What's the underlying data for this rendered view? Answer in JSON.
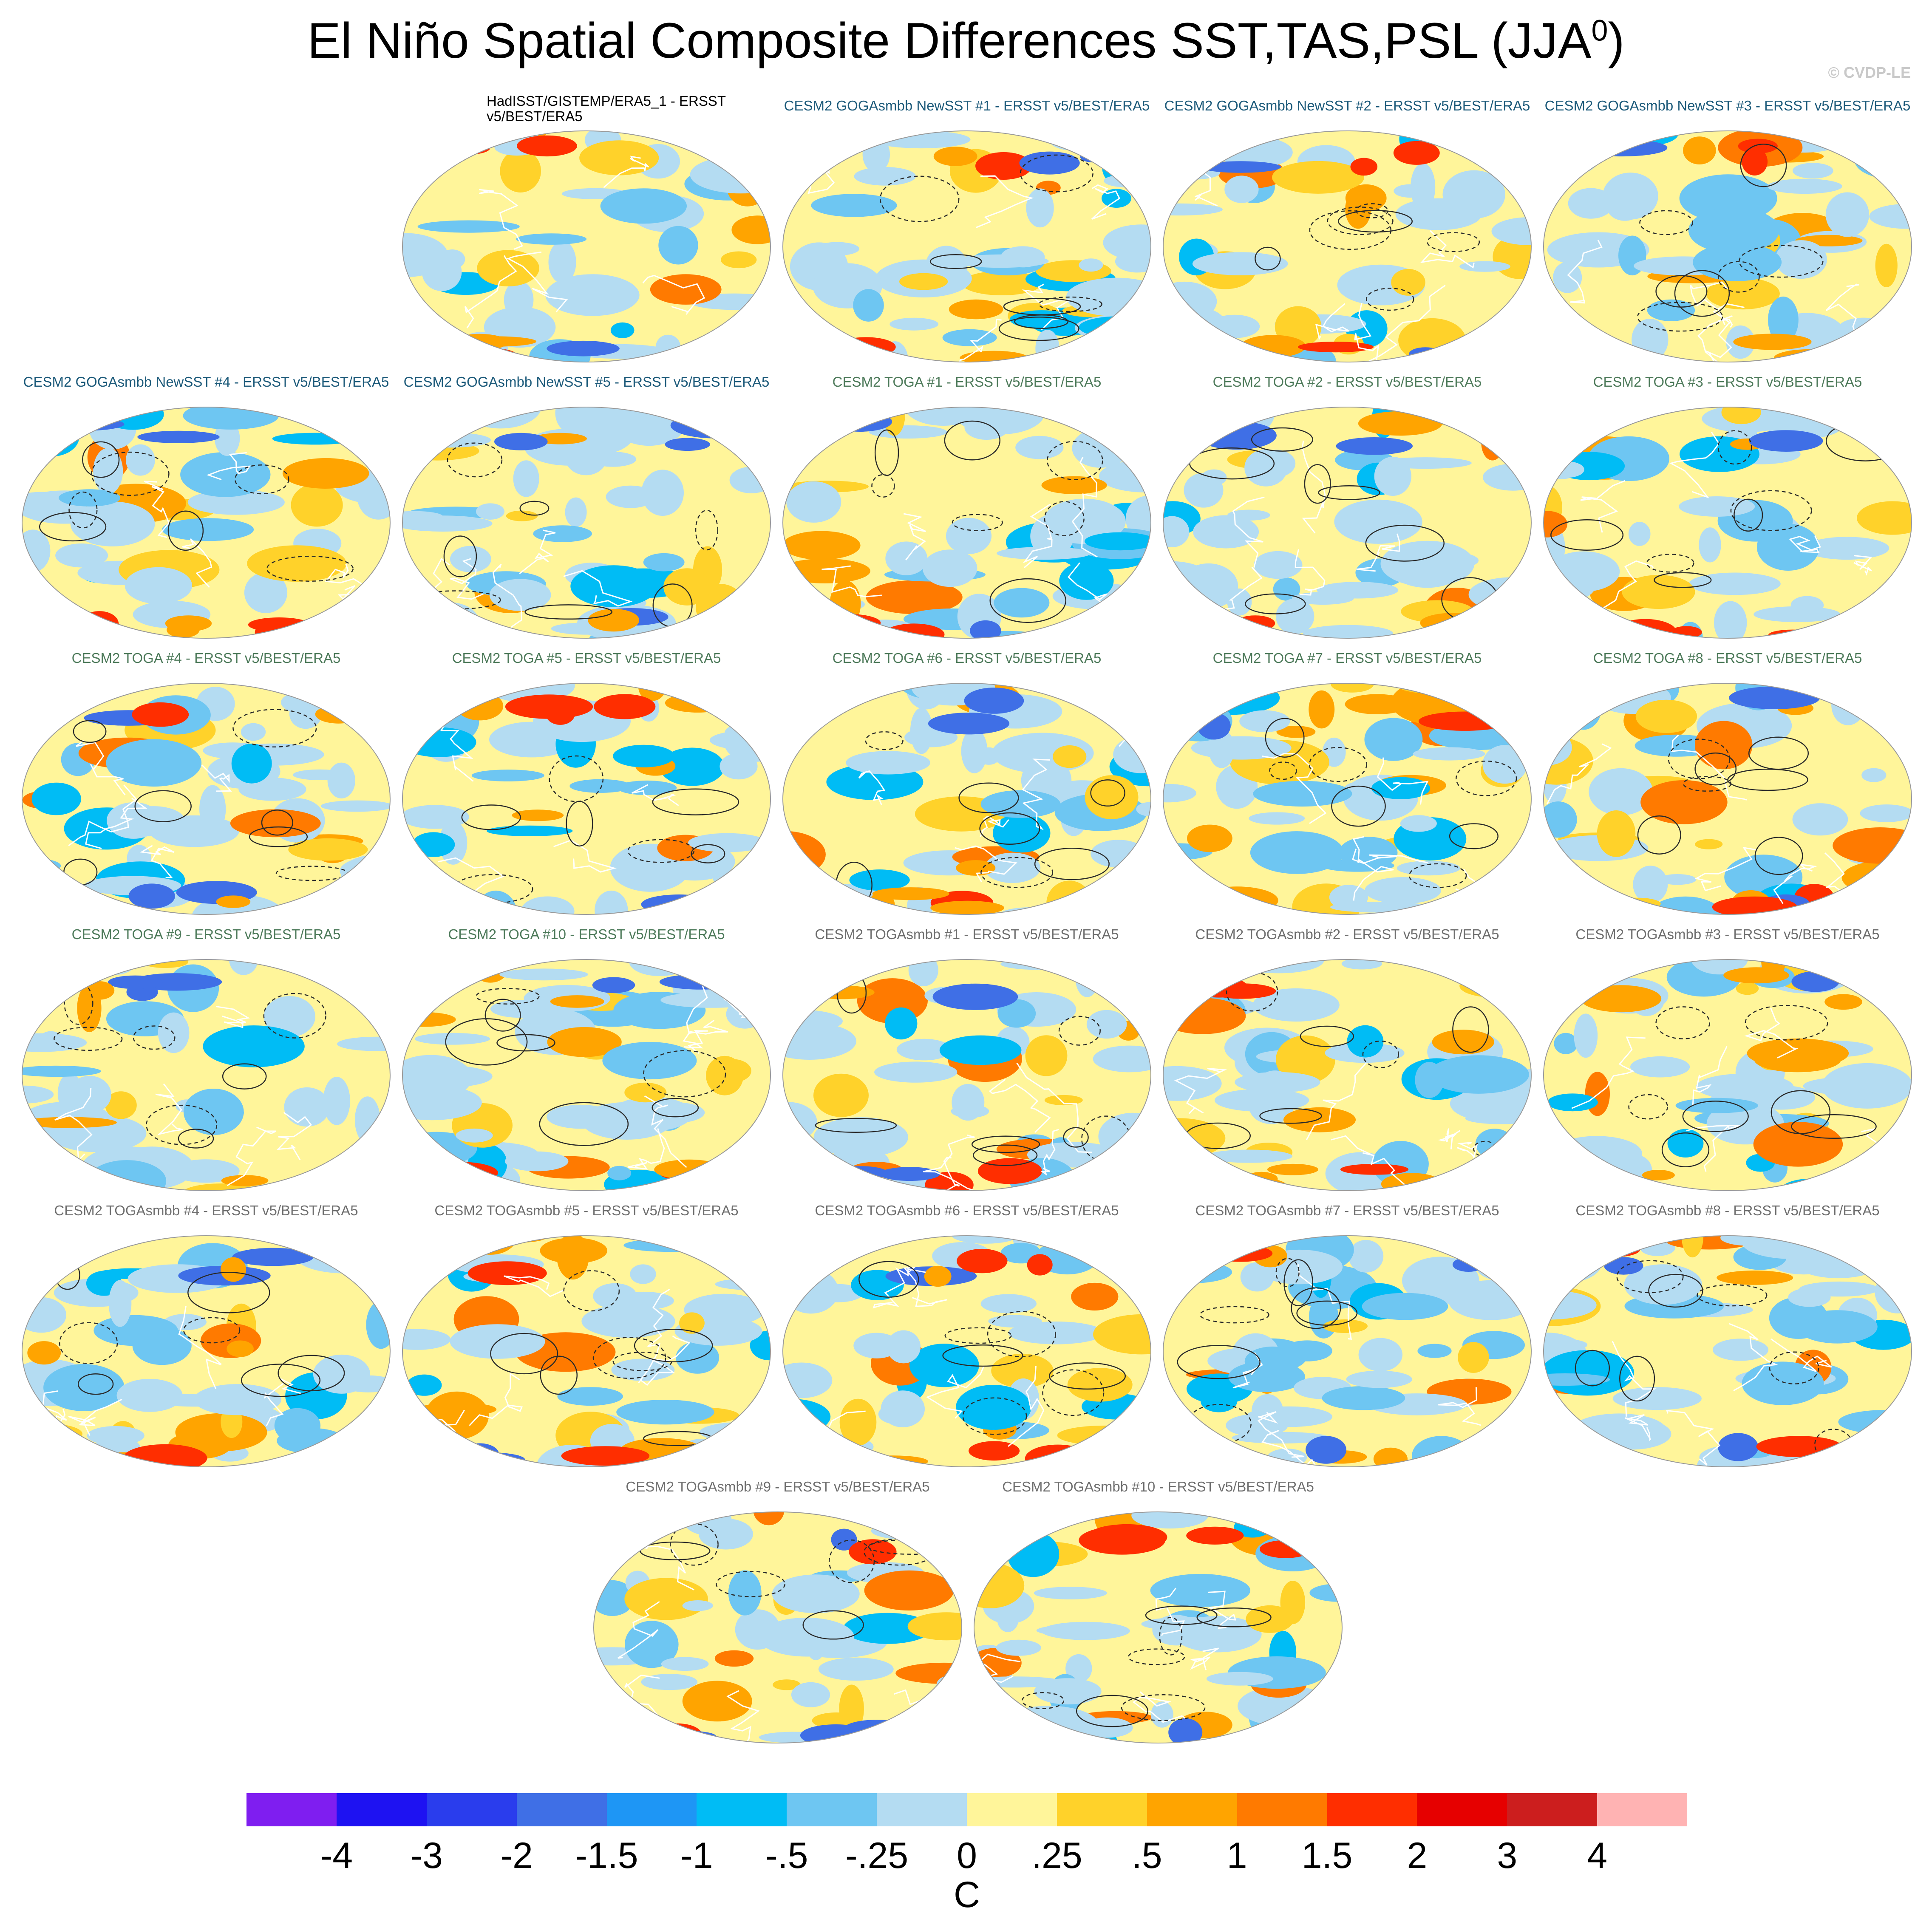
{
  "figure": {
    "title": "El Niño Spatial Composite Differences SST,TAS,PSL (JJA",
    "title_sup": "0",
    "title_close": ")",
    "credit": "© CVDP-LE"
  },
  "colors": {
    "levels": [
      "#7f1ef0",
      "#1e12f2",
      "#2a3ded",
      "#3f6fe6",
      "#1e96f5",
      "#00bcf5",
      "#6ec6f2",
      "#b4dcf2",
      "#fff59a",
      "#ffd22a",
      "#ffa400",
      "#ff7a00",
      "#ff2e00",
      "#e60000",
      "#cc1e1e",
      "#ffb3b3"
    ],
    "obs_title": "#000000",
    "goga_title": "#1c5a7a",
    "toga_title": "#4d7a5a",
    "togasmbb_title": "#6e6e6e",
    "coast": "#ffffff",
    "contour": "#2a2a2a"
  },
  "chart_data": {
    "type": "heatmap",
    "title": "El Niño Spatial Composite Differences SST,TAS,PSL (JJA0)",
    "colorbar": {
      "labels": [
        "-4",
        "-3",
        "-2",
        "-1.5",
        "-1",
        "-.5",
        "-.25",
        "0",
        ".25",
        ".5",
        "1",
        "1.5",
        "2",
        "3",
        "4"
      ],
      "units": "C"
    },
    "panels": [
      {
        "title": "HadISST/GISTEMP/ERA5_1 - ERSST v5/BEST/ERA5",
        "group": "obs",
        "seed": 3,
        "contours": 0
      },
      {
        "title": "CESM2 GOGAsmbb NewSST #1 - ERSST v5/BEST/ERA5",
        "group": "goga",
        "seed": 11,
        "contours": 1
      },
      {
        "title": "CESM2 GOGAsmbb NewSST #2 - ERSST v5/BEST/ERA5",
        "group": "goga",
        "seed": 19,
        "contours": 1
      },
      {
        "title": "CESM2 GOGAsmbb NewSST #3 - ERSST v5/BEST/ERA5",
        "group": "goga",
        "seed": 27,
        "contours": 1
      },
      {
        "title": "CESM2 GOGAsmbb NewSST #4 - ERSST v5/BEST/ERA5",
        "group": "goga",
        "seed": 35,
        "contours": 1
      },
      {
        "title": "CESM2 GOGAsmbb NewSST #5 - ERSST v5/BEST/ERA5",
        "group": "goga",
        "seed": 43,
        "contours": 1
      },
      {
        "title": "CESM2 TOGA #1 - ERSST v5/BEST/ERA5",
        "group": "toga",
        "seed": 51,
        "contours": 1
      },
      {
        "title": "CESM2 TOGA #2 - ERSST v5/BEST/ERA5",
        "group": "toga",
        "seed": 59,
        "contours": 1
      },
      {
        "title": "CESM2 TOGA #3 - ERSST v5/BEST/ERA5",
        "group": "toga",
        "seed": 67,
        "contours": 1
      },
      {
        "title": "CESM2 TOGA #4 - ERSST v5/BEST/ERA5",
        "group": "toga",
        "seed": 75,
        "contours": 1
      },
      {
        "title": "CESM2 TOGA #5 - ERSST v5/BEST/ERA5",
        "group": "toga",
        "seed": 83,
        "contours": 1
      },
      {
        "title": "CESM2 TOGA #6 - ERSST v5/BEST/ERA5",
        "group": "toga",
        "seed": 91,
        "contours": 1
      },
      {
        "title": "CESM2 TOGA #7 - ERSST v5/BEST/ERA5",
        "group": "toga",
        "seed": 99,
        "contours": 1
      },
      {
        "title": "CESM2 TOGA #8 - ERSST v5/BEST/ERA5",
        "group": "toga",
        "seed": 107,
        "contours": 1
      },
      {
        "title": "CESM2 TOGA #9 - ERSST v5/BEST/ERA5",
        "group": "toga",
        "seed": 115,
        "contours": 1
      },
      {
        "title": "CESM2 TOGA #10 - ERSST v5/BEST/ERA5",
        "group": "toga",
        "seed": 123,
        "contours": 1
      },
      {
        "title": "CESM2 TOGAsmbb #1 - ERSST v5/BEST/ERA5",
        "group": "tsmb",
        "seed": 131,
        "contours": 1
      },
      {
        "title": "CESM2 TOGAsmbb #2 - ERSST v5/BEST/ERA5",
        "group": "tsmb",
        "seed": 139,
        "contours": 1
      },
      {
        "title": "CESM2 TOGAsmbb #3 - ERSST v5/BEST/ERA5",
        "group": "tsmb",
        "seed": 147,
        "contours": 1
      },
      {
        "title": "CESM2 TOGAsmbb #4 - ERSST v5/BEST/ERA5",
        "group": "tsmb",
        "seed": 155,
        "contours": 1
      },
      {
        "title": "CESM2 TOGAsmbb #5 - ERSST v5/BEST/ERA5",
        "group": "tsmb",
        "seed": 163,
        "contours": 1
      },
      {
        "title": "CESM2 TOGAsmbb #6 - ERSST v5/BEST/ERA5",
        "group": "tsmb",
        "seed": 171,
        "contours": 1
      },
      {
        "title": "CESM2 TOGAsmbb #7 - ERSST v5/BEST/ERA5",
        "group": "tsmb",
        "seed": 179,
        "contours": 1
      },
      {
        "title": "CESM2 TOGAsmbb #8 - ERSST v5/BEST/ERA5",
        "group": "tsmb",
        "seed": 187,
        "contours": 1
      },
      {
        "title": "CESM2 TOGAsmbb #9 - ERSST v5/BEST/ERA5",
        "group": "tsmb",
        "seed": 195,
        "contours": 1
      },
      {
        "title": "CESM2 TOGAsmbb #10 - ERSST v5/BEST/ERA5",
        "group": "tsmb",
        "seed": 203,
        "contours": 1
      }
    ]
  }
}
